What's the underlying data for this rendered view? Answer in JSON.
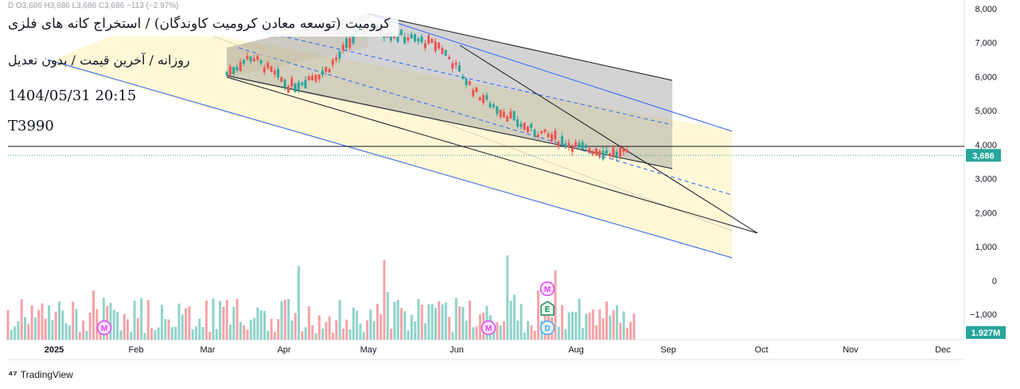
{
  "header": {
    "title": "کرومیت (توسعه معادن کرومیت کاوندگان) / استخراج کانه های فلزی",
    "subtitle": "روزانه / آخرین قیمت / بدون تعدیل",
    "datetime": "1404/05/31 20:15",
    "symbol": "T3990",
    "ohlc_line": "D  O3,686  H3,686  L3,686  C3,686  −113 (−2.97%)"
  },
  "price_axis": {
    "ticks": [
      "8,000",
      "7,000",
      "6,000",
      "5,000",
      "4,000",
      "3,000",
      "2,000",
      "1,000",
      "0",
      "−1,000"
    ],
    "last_price_label": "3,686",
    "volume_label": "1.927M"
  },
  "time_axis": {
    "labels": [
      "2025",
      "Feb",
      "Mar",
      "Apr",
      "May",
      "Jun",
      "Aug",
      "Sep",
      "Oct",
      "Nov",
      "Dec"
    ]
  },
  "event_badges": [
    {
      "label": "M",
      "type": "dividend"
    },
    {
      "label": "M",
      "type": "dividend"
    },
    {
      "label": "M",
      "type": "dividend"
    },
    {
      "label": "E",
      "type": "earnings"
    },
    {
      "label": "D",
      "type": "split"
    }
  ],
  "footer": {
    "brand": "TradingView"
  },
  "colors": {
    "up": "#26a69a",
    "down": "#ef5350",
    "up_volume": "#8fd3c9",
    "down_volume": "#f4a3a8",
    "channel_line": "#2962ff",
    "fill_yellow": "#fff6c9",
    "fill_gray": "#9e9e9e",
    "last_price": "#26a69a"
  },
  "chart_data": {
    "type": "candlestick",
    "ylim": [
      -1500,
      8000
    ],
    "horizontal_level": 3950,
    "last_price": 3686,
    "series": [
      {
        "name": "price",
        "description_points": [
          {
            "x": "2025-03-10",
            "y": 6100
          },
          {
            "x": "2025-03-20",
            "y": 6600
          },
          {
            "x": "2025-04-05",
            "y": 5700
          },
          {
            "x": "2025-04-20",
            "y": 6200
          },
          {
            "x": "2025-05-05",
            "y": 7500
          },
          {
            "x": "2025-05-20",
            "y": 7200
          },
          {
            "x": "2025-06-05",
            "y": 6900
          },
          {
            "x": "2025-06-20",
            "y": 5500
          },
          {
            "x": "2025-07-10",
            "y": 4500
          },
          {
            "x": "2025-08-01",
            "y": 3900
          },
          {
            "x": "2025-08-21",
            "y": 3686
          }
        ]
      }
    ]
  }
}
